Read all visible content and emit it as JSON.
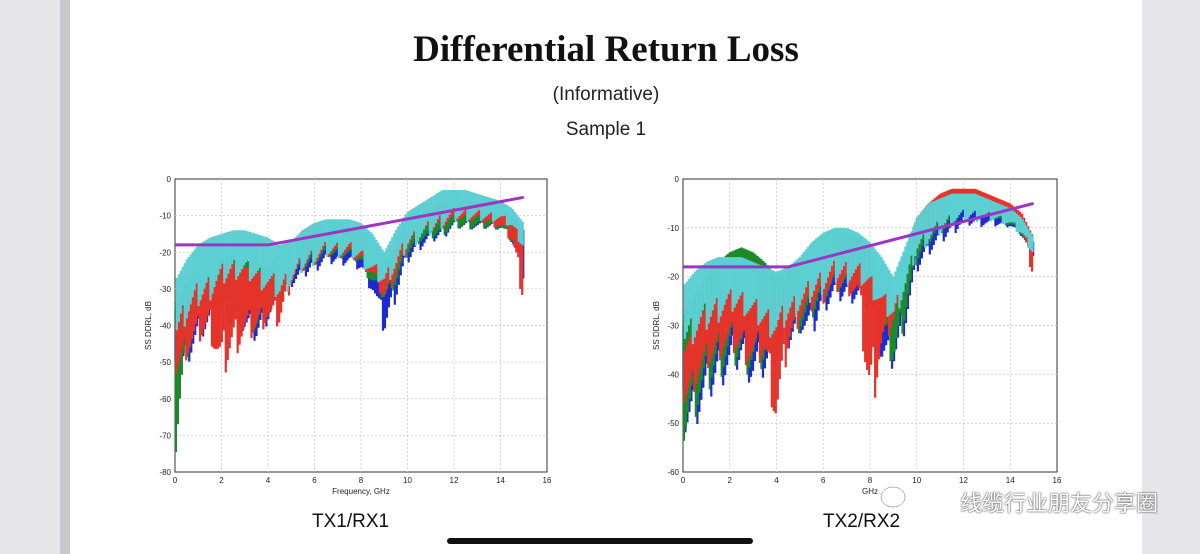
{
  "slide": {
    "title": "Differential Return Loss",
    "subtitle": "(Informative)",
    "sample_label": "Sample 1"
  },
  "chart_data": [
    {
      "type": "line",
      "caption": "TX1/RX1",
      "xlabel": "Frequency, GHz",
      "ylabel": "SS DDRL, dB",
      "xlim": [
        0,
        16
      ],
      "ylim": [
        -80,
        0
      ],
      "xticks": [
        "0",
        "2",
        "4",
        "6",
        "8",
        "10",
        "12",
        "14",
        "16"
      ],
      "yticks": [
        "0",
        "-10",
        "-20",
        "-30",
        "-40",
        "-50",
        "-60",
        "-70",
        "-80"
      ],
      "grid": true,
      "series_colors": [
        "#1c2bd0",
        "#1d8a2a",
        "#e5332a",
        "#5ccfd2"
      ],
      "limit_line_color": "#9b35c2",
      "limit_line": {
        "x": [
          0,
          4,
          15
        ],
        "y": [
          -18,
          -18,
          -5
        ]
      },
      "envelopes": [
        {
          "color": "#1c2bd0",
          "x": [
            0,
            0.5,
            1,
            1.5,
            2,
            2.5,
            3,
            3.5,
            4,
            4.5,
            5,
            5.5,
            6,
            6.5,
            7,
            7.5,
            8,
            8.5,
            9,
            9.5,
            10,
            10.5,
            11,
            11.5,
            12,
            12.5,
            13,
            13.5,
            14,
            14.5,
            15
          ],
          "top": [
            -36,
            -30,
            -26,
            -24,
            -22,
            -22,
            -23,
            -24,
            -25,
            -22,
            -20,
            -16,
            -13,
            -13,
            -14,
            -14,
            -16,
            -20,
            -25,
            -18,
            -12,
            -10,
            -9,
            -7,
            -7,
            -7,
            -8,
            -8,
            -8,
            -10,
            -14
          ],
          "bot": [
            -62,
            -52,
            -46,
            -42,
            -40,
            -42,
            -44,
            -46,
            -40,
            -34,
            -30,
            -28,
            -26,
            -24,
            -24,
            -24,
            -26,
            -32,
            -44,
            -34,
            -24,
            -20,
            -18,
            -17,
            -14,
            -14,
            -14,
            -14,
            -14,
            -18,
            -28
          ]
        },
        {
          "color": "#1d8a2a",
          "x": [
            0,
            0.5,
            1,
            1.5,
            2,
            2.5,
            3,
            3.5,
            4,
            4.5,
            5,
            5.5,
            6,
            6.5,
            7,
            7.5,
            8,
            8.5,
            9,
            9.5,
            10,
            10.5,
            11,
            11.5,
            12,
            12.5,
            13,
            13.5,
            14,
            14.5,
            15
          ],
          "top": [
            -34,
            -28,
            -24,
            -22,
            -21,
            -21,
            -22,
            -23,
            -24,
            -21,
            -18,
            -15,
            -13,
            -13,
            -13,
            -14,
            -15,
            -19,
            -24,
            -18,
            -12,
            -10,
            -9,
            -8,
            -7,
            -7,
            -7,
            -8,
            -9,
            -11,
            -15
          ],
          "bot": [
            -80,
            -50,
            -44,
            -40,
            -38,
            -40,
            -42,
            -44,
            -38,
            -32,
            -28,
            -26,
            -24,
            -22,
            -22,
            -22,
            -24,
            -30,
            -34,
            -30,
            -22,
            -18,
            -17,
            -16,
            -14,
            -14,
            -14,
            -14,
            -14,
            -18,
            -22
          ]
        },
        {
          "color": "#e5332a",
          "x": [
            0,
            0.5,
            1,
            1.5,
            2,
            2.5,
            3,
            3.5,
            4,
            4.5,
            5,
            5.5,
            6,
            6.5,
            7,
            7.5,
            8,
            8.5,
            9,
            9.5,
            10,
            10.5,
            11,
            11.5,
            12,
            12.5,
            13,
            13.5,
            14,
            14.5,
            15
          ],
          "top": [
            -40,
            -32,
            -27,
            -24,
            -23,
            -23,
            -24,
            -25,
            -26,
            -22,
            -18,
            -14,
            -12,
            -12,
            -12,
            -13,
            -14,
            -18,
            -24,
            -18,
            -11,
            -9,
            -8,
            -6,
            -6,
            -6,
            -6,
            -7,
            -8,
            -10,
            -15
          ],
          "bot": [
            -56,
            -50,
            -46,
            -44,
            -58,
            -50,
            -46,
            -44,
            -40,
            -42,
            -30,
            -26,
            -24,
            -22,
            -22,
            -22,
            -24,
            -28,
            -34,
            -28,
            -20,
            -16,
            -15,
            -14,
            -12,
            -12,
            -12,
            -13,
            -14,
            -18,
            -36
          ]
        },
        {
          "color": "#5ccfd2",
          "x": [
            0,
            0.5,
            1,
            1.5,
            2,
            2.5,
            3,
            3.5,
            4,
            4.5,
            5,
            5.5,
            6,
            6.5,
            7,
            7.5,
            8,
            8.5,
            9,
            9.5,
            10,
            10.5,
            11,
            11.5,
            12,
            12.5,
            13,
            13.5,
            14,
            14.5,
            15
          ],
          "top": [
            -28,
            -22,
            -18,
            -16,
            -15,
            -14,
            -14,
            -15,
            -16,
            -18,
            -17,
            -14,
            -12,
            -11,
            -11,
            -11,
            -12,
            -15,
            -20,
            -14,
            -9,
            -7,
            -5,
            -3,
            -3,
            -3,
            -4,
            -5,
            -6,
            -8,
            -12
          ],
          "bot": [
            -46,
            -40,
            -36,
            -34,
            -30,
            -28,
            -28,
            -30,
            -32,
            -34,
            -30,
            -26,
            -24,
            -22,
            -22,
            -22,
            -24,
            -28,
            -30,
            -26,
            -20,
            -18,
            -16,
            -14,
            -12,
            -12,
            -12,
            -12,
            -12,
            -14,
            -20
          ]
        }
      ]
    },
    {
      "type": "line",
      "caption": "TX2/RX2",
      "xlabel": "GHz",
      "ylabel": "SS DDRL, dB",
      "xlim": [
        0,
        16
      ],
      "ylim": [
        -60,
        0
      ],
      "xticks": [
        "0",
        "2",
        "4",
        "6",
        "8",
        "10",
        "12",
        "14",
        "16"
      ],
      "yticks": [
        "0",
        "-10",
        "-20",
        "-30",
        "-40",
        "-50",
        "-60"
      ],
      "grid": true,
      "series_colors": [
        "#1c2bd0",
        "#1d8a2a",
        "#e5332a",
        "#5ccfd2"
      ],
      "limit_line_color": "#9b35c2",
      "limit_line": {
        "x": [
          0,
          4.5,
          15
        ],
        "y": [
          -18,
          -18,
          -5
        ]
      },
      "envelopes": [
        {
          "color": "#1c2bd0",
          "x": [
            0,
            0.5,
            1,
            1.5,
            2,
            2.5,
            3,
            3.5,
            4,
            4.5,
            5,
            5.5,
            6,
            6.5,
            7,
            7.5,
            8,
            8.5,
            9,
            9.5,
            10,
            10.5,
            11,
            11.5,
            12,
            12.5,
            13,
            13.5,
            14,
            14.5,
            15
          ],
          "top": [
            -30,
            -26,
            -22,
            -19,
            -17,
            -16,
            -17,
            -19,
            -22,
            -20,
            -18,
            -15,
            -13,
            -12,
            -12,
            -13,
            -15,
            -19,
            -24,
            -17,
            -10,
            -7,
            -5,
            -4,
            -3,
            -4,
            -5,
            -6,
            -7,
            -9,
            -13
          ],
          "bot": [
            -54,
            -52,
            -48,
            -44,
            -42,
            -40,
            -44,
            -42,
            -38,
            -36,
            -32,
            -34,
            -28,
            -26,
            -26,
            -26,
            -28,
            -40,
            -40,
            -32,
            -20,
            -16,
            -14,
            -12,
            -10,
            -10,
            -10,
            -10,
            -10,
            -12,
            -16
          ]
        },
        {
          "color": "#1d8a2a",
          "x": [
            0,
            0.5,
            1,
            1.5,
            2,
            2.5,
            3,
            3.5,
            4,
            4.5,
            5,
            5.5,
            6,
            6.5,
            7,
            7.5,
            8,
            8.5,
            9,
            9.5,
            10,
            10.5,
            11,
            11.5,
            12,
            12.5,
            13,
            13.5,
            14,
            14.5,
            15
          ],
          "top": [
            -28,
            -24,
            -20,
            -17,
            -15,
            -14,
            -15,
            -17,
            -20,
            -19,
            -17,
            -14,
            -12,
            -11,
            -11,
            -12,
            -14,
            -17,
            -22,
            -16,
            -9,
            -6,
            -4,
            -3,
            -2,
            -3,
            -4,
            -5,
            -6,
            -8,
            -12
          ],
          "bot": [
            -56,
            -50,
            -46,
            -42,
            -40,
            -40,
            -42,
            -40,
            -36,
            -34,
            -32,
            -30,
            -26,
            -24,
            -24,
            -24,
            -26,
            -34,
            -40,
            -30,
            -18,
            -14,
            -12,
            -10,
            -8,
            -8,
            -8,
            -9,
            -10,
            -12,
            -16
          ]
        },
        {
          "color": "#e5332a",
          "x": [
            0,
            0.5,
            1,
            1.5,
            2,
            2.5,
            3,
            3.5,
            4,
            4.5,
            5,
            5.5,
            6,
            6.5,
            7,
            7.5,
            8,
            8.5,
            9,
            9.5,
            10,
            10.5,
            11,
            11.5,
            12,
            12.5,
            13,
            13.5,
            14,
            14.5,
            15
          ],
          "top": [
            -36,
            -30,
            -26,
            -23,
            -21,
            -20,
            -21,
            -22,
            -24,
            -22,
            -19,
            -15,
            -13,
            -12,
            -12,
            -13,
            -14,
            -18,
            -24,
            -16,
            -8,
            -5,
            -3,
            -2,
            -2,
            -2,
            -3,
            -4,
            -5,
            -7,
            -12
          ],
          "bot": [
            -48,
            -44,
            -40,
            -38,
            -36,
            -38,
            -40,
            -38,
            -54,
            -36,
            -30,
            -28,
            -26,
            -24,
            -24,
            -26,
            -52,
            -38,
            -30,
            -22,
            -14,
            -12,
            -10,
            -8,
            -8,
            -8,
            -8,
            -8,
            -9,
            -12,
            -21
          ]
        },
        {
          "color": "#5ccfd2",
          "x": [
            0,
            0.5,
            1,
            1.5,
            2,
            2.5,
            3,
            3.5,
            4,
            4.5,
            5,
            5.5,
            6,
            6.5,
            7,
            7.5,
            8,
            8.5,
            9,
            9.5,
            10,
            10.5,
            11,
            11.5,
            12,
            12.5,
            13,
            13.5,
            14,
            14.5,
            15
          ],
          "top": [
            -22,
            -19,
            -17,
            -16,
            -16,
            -16,
            -17,
            -18,
            -19,
            -18,
            -16,
            -13,
            -11,
            -10,
            -10,
            -11,
            -13,
            -16,
            -20,
            -14,
            -8,
            -5,
            -4,
            -3,
            -3,
            -3,
            -4,
            -5,
            -6,
            -8,
            -12
          ],
          "bot": [
            -36,
            -34,
            -32,
            -30,
            -28,
            -28,
            -30,
            -32,
            -34,
            -30,
            -28,
            -26,
            -24,
            -22,
            -22,
            -22,
            -24,
            -28,
            -30,
            -24,
            -16,
            -14,
            -12,
            -10,
            -9,
            -9,
            -9,
            -9,
            -10,
            -12,
            -16
          ]
        }
      ]
    }
  ],
  "watermark": {
    "text": "线缆行业朋友分享圈"
  }
}
